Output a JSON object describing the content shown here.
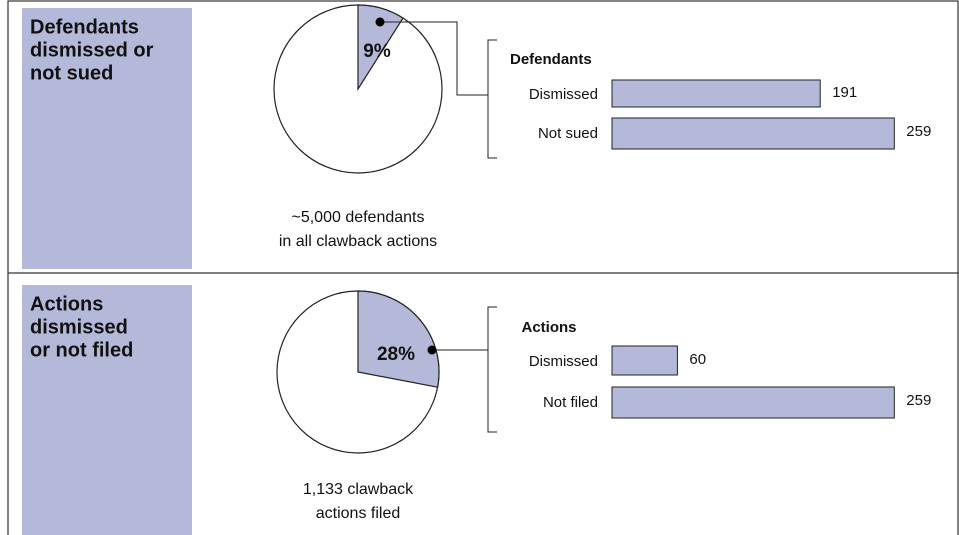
{
  "chart_data": [
    {
      "type": "pie",
      "title": [
        "Defendants",
        "dismissed or",
        "not sued"
      ],
      "values": [
        9
      ],
      "value_labels": [
        "9%"
      ],
      "color": "#b4b9d9",
      "caption": [
        "~5,000 defendants",
        "in all clawback actions"
      ]
    },
    {
      "type": "bar",
      "title": "Defendants",
      "categories": [
        "Dismissed",
        "Not sued"
      ],
      "values": [
        191,
        259
      ],
      "color": "#b4b9d9"
    },
    {
      "type": "pie",
      "title": [
        "Actions",
        "dismissed",
        "or not filed"
      ],
      "values": [
        28
      ],
      "value_labels": [
        "28%"
      ],
      "color": "#b4b9d9",
      "caption": [
        "1,133 clawback",
        "actions filed"
      ]
    },
    {
      "type": "bar",
      "title": "Actions",
      "categories": [
        "Dismissed",
        "Not filed"
      ],
      "values": [
        60,
        259
      ],
      "color": "#b4b9d9"
    }
  ]
}
